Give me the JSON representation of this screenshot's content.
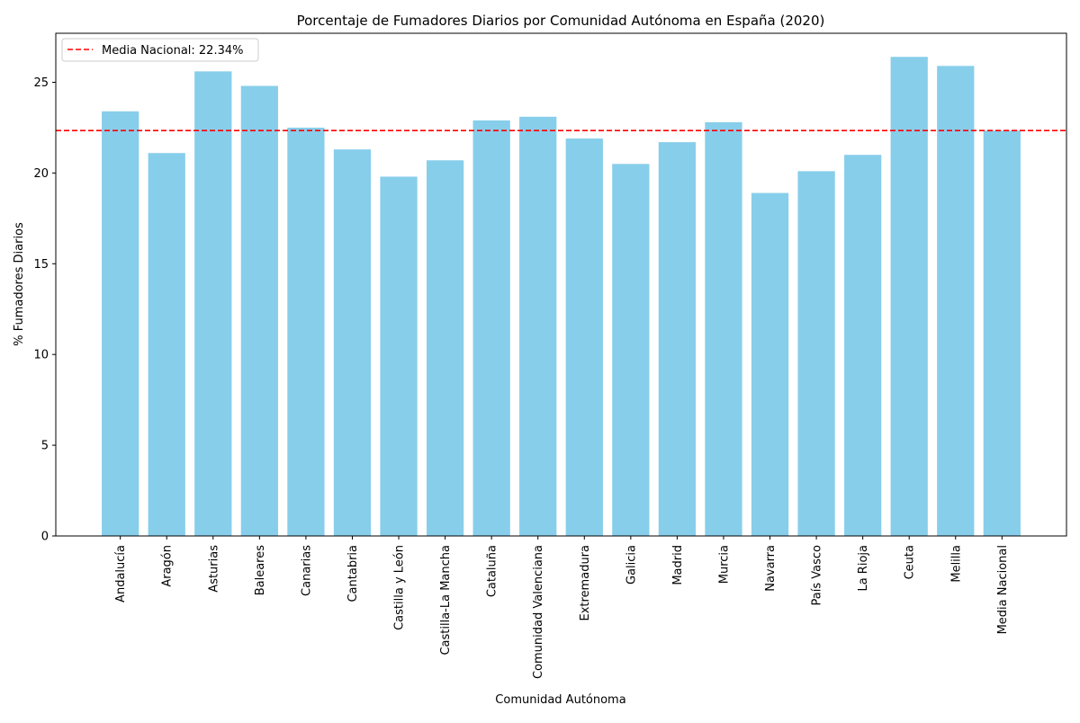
{
  "chart_data": {
    "type": "bar",
    "title": "Porcentaje de Fumadores Diarios por Comunidad Autónoma en España (2020)",
    "xlabel": "Comunidad Autónoma",
    "ylabel": "% Fumadores Diarios",
    "ylim": [
      0,
      27.7
    ],
    "yticks": [
      0,
      5,
      10,
      15,
      20,
      25
    ],
    "grid": false,
    "legend_position": "top-left",
    "bar_color": "#87ceeb",
    "categories": [
      "Andalucía",
      "Aragón",
      "Asturias",
      "Baleares",
      "Canarias",
      "Cantabria",
      "Castilla y León",
      "Castilla-La Mancha",
      "Cataluña",
      "Comunidad Valenciana",
      "Extremadura",
      "Galicia",
      "Madrid",
      "Murcia",
      "Navarra",
      "País Vasco",
      "La Rioja",
      "Ceuta",
      "Melilla",
      "Media Nacional"
    ],
    "values": [
      23.4,
      21.1,
      25.6,
      24.8,
      22.5,
      21.3,
      19.8,
      20.7,
      22.9,
      23.1,
      21.9,
      20.5,
      21.7,
      22.8,
      18.9,
      20.1,
      21.0,
      26.4,
      25.9,
      22.34
    ],
    "reference_line": {
      "label": "Media Nacional: 22.34%",
      "value": 22.34,
      "color": "#ff0000",
      "style": "dashed"
    }
  }
}
